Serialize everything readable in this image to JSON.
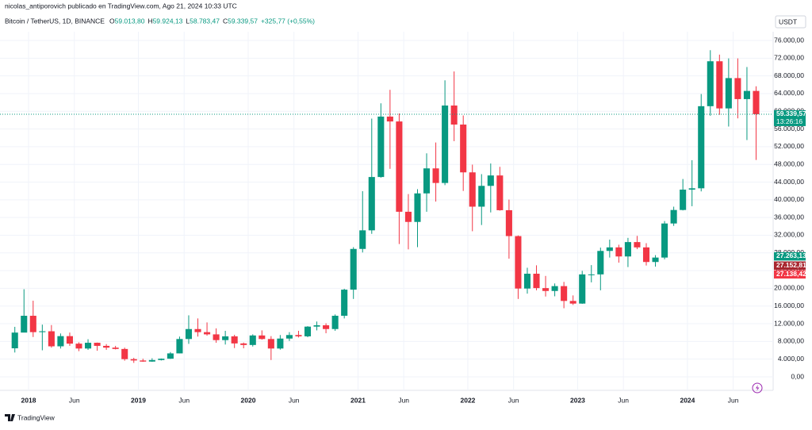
{
  "header": {
    "title": "nicolas_antiporovich publicado en TradingView.com, Ago 21, 2024 10:33 UTC"
  },
  "legend": {
    "symbol": "Bitcoin / TetherUS, 1D, BINANCE",
    "items": [
      {
        "key": "O",
        "text": "59.013,80"
      },
      {
        "key": "H",
        "text": "59.924,13"
      },
      {
        "key": "L",
        "text": "58.783,47"
      },
      {
        "key": "C",
        "text": "59.339,57"
      }
    ],
    "change": "+325,77 (+0,55%)"
  },
  "currency": "USDT",
  "brand": "TradingView",
  "chart_data": {
    "type": "candlestick",
    "up_color": "#089981",
    "down_color": "#f23645",
    "x": [
      "2017-11",
      "2017-12",
      "2018-01",
      "2018-02",
      "2018-03",
      "2018-04",
      "2018-05",
      "2018-06",
      "2018-07",
      "2018-08",
      "2018-09",
      "2018-10",
      "2018-11",
      "2018-12",
      "2019-01",
      "2019-02",
      "2019-03",
      "2019-04",
      "2019-05",
      "2019-06",
      "2019-07",
      "2019-08",
      "2019-09",
      "2019-10",
      "2019-11",
      "2019-12",
      "2020-01",
      "2020-02",
      "2020-03",
      "2020-04",
      "2020-05",
      "2020-06",
      "2020-07",
      "2020-08",
      "2020-09",
      "2020-10",
      "2020-11",
      "2020-12",
      "2021-01",
      "2021-02",
      "2021-03",
      "2021-04",
      "2021-05",
      "2021-06",
      "2021-07",
      "2021-08",
      "2021-09",
      "2021-10",
      "2021-11",
      "2021-12",
      "2022-01",
      "2022-02",
      "2022-03",
      "2022-04",
      "2022-05",
      "2022-06",
      "2022-07",
      "2022-08",
      "2022-09",
      "2022-10",
      "2022-11",
      "2022-12",
      "2023-01",
      "2023-02",
      "2023-03",
      "2023-04",
      "2023-05",
      "2023-06",
      "2023-07",
      "2023-08",
      "2023-09",
      "2023-10",
      "2023-11",
      "2023-12",
      "2024-01",
      "2024-02",
      "2024-03",
      "2024-04",
      "2024-05",
      "2024-06",
      "2024-07",
      "2024-08"
    ],
    "open": [
      6450,
      10000,
      13800,
      10100,
      10300,
      6900,
      9200,
      7500,
      6400,
      7700,
      7000,
      6600,
      6300,
      4000,
      3700,
      3450,
      3800,
      4100,
      5300,
      8550,
      10800,
      10100,
      9600,
      8300,
      9150,
      7550,
      7200,
      9350,
      8550,
      6400,
      8650,
      9450,
      9150,
      11350,
      11650,
      10800,
      13800,
      19700,
      28900,
      33100,
      45150,
      58800,
      57700,
      37300,
      35000,
      41450,
      47100,
      43800,
      61300,
      57000,
      46200,
      38450,
      43150,
      45500,
      37650,
      31800,
      19950,
      23300,
      20050,
      19400,
      20500,
      17150,
      16550,
      23150,
      23150,
      28450,
      29250,
      27200,
      30450,
      29250,
      25950,
      26950,
      34650,
      37700,
      42300,
      42600,
      61150,
      71300,
      60650,
      67500,
      62750,
      64600
    ],
    "high": [
      11300,
      19800,
      17200,
      11800,
      11700,
      9800,
      10000,
      7800,
      8500,
      7750,
      7400,
      7000,
      6600,
      4300,
      4100,
      4200,
      4150,
      5600,
      9100,
      13900,
      13200,
      12300,
      10950,
      10400,
      9500,
      7750,
      9600,
      10500,
      9200,
      9450,
      10100,
      10400,
      11450,
      12500,
      12100,
      14100,
      19900,
      29300,
      41950,
      58350,
      61800,
      64850,
      59500,
      41300,
      42400,
      50500,
      52950,
      67000,
      69000,
      59050,
      47950,
      45800,
      48200,
      47450,
      40050,
      31950,
      24650,
      25200,
      22800,
      21100,
      21450,
      18400,
      23950,
      25250,
      29200,
      31000,
      29850,
      31400,
      31850,
      30200,
      27500,
      35200,
      38450,
      44700,
      48950,
      63900,
      73800,
      72800,
      71950,
      71950,
      70000,
      65650
    ],
    "low": [
      5500,
      10400,
      9000,
      6000,
      6600,
      6400,
      7000,
      5800,
      6100,
      5900,
      6100,
      6200,
      3650,
      3150,
      3400,
      3400,
      3700,
      4050,
      5300,
      7450,
      9100,
      9300,
      7700,
      7300,
      6500,
      6450,
      6850,
      8400,
      3800,
      6150,
      8100,
      8900,
      8950,
      10500,
      9850,
      10400,
      13200,
      17600,
      28100,
      32300,
      45000,
      47000,
      30000,
      28800,
      29300,
      37300,
      39600,
      43300,
      53250,
      42000,
      32900,
      34300,
      37150,
      37550,
      26700,
      17600,
      18800,
      19550,
      18150,
      18200,
      15500,
      16250,
      16500,
      21350,
      19550,
      26950,
      25800,
      24800,
      28850,
      25150,
      24900,
      26550,
      34100,
      37600,
      38550,
      41900,
      59000,
      59200,
      56550,
      58400,
      53500,
      49000
    ],
    "close": [
      10000,
      13800,
      10100,
      10300,
      6900,
      9200,
      7500,
      6400,
      7700,
      7000,
      6600,
      6300,
      4000,
      3700,
      3450,
      3800,
      4100,
      5300,
      8550,
      10800,
      10100,
      9600,
      8300,
      9150,
      7550,
      7200,
      9350,
      8550,
      6400,
      8650,
      9450,
      9150,
      11350,
      11650,
      10800,
      13800,
      19700,
      28900,
      33100,
      45150,
      58800,
      57700,
      37300,
      35000,
      41450,
      47100,
      43800,
      61300,
      57000,
      46200,
      38450,
      43150,
      45500,
      37650,
      31800,
      19950,
      23300,
      20050,
      19400,
      20500,
      17150,
      16550,
      23150,
      23150,
      28450,
      29250,
      27200,
      30450,
      29250,
      25950,
      26950,
      34650,
      37700,
      42300,
      42600,
      61150,
      71300,
      60650,
      67500,
      62750,
      64600,
      59340
    ],
    "xlim": [
      "2017-10",
      "2024-10"
    ],
    "xticks": [
      {
        "value": "2018-01",
        "label": "2018"
      },
      {
        "value": "2018-06",
        "label": "Jun"
      },
      {
        "value": "2019-01",
        "label": "2019"
      },
      {
        "value": "2019-06",
        "label": "Jun"
      },
      {
        "value": "2020-01",
        "label": "2020"
      },
      {
        "value": "2020-06",
        "label": "Jun"
      },
      {
        "value": "2021-01",
        "label": "2021"
      },
      {
        "value": "2021-06",
        "label": "Jun"
      },
      {
        "value": "2022-01",
        "label": "2022"
      },
      {
        "value": "2022-06",
        "label": "Jun"
      },
      {
        "value": "2023-01",
        "label": "2023"
      },
      {
        "value": "2023-06",
        "label": "Jun"
      },
      {
        "value": "2024-01",
        "label": "2024"
      },
      {
        "value": "2024-06",
        "label": "Jun"
      }
    ],
    "ylim": [
      0,
      76000
    ],
    "yticks": [
      {
        "value": 0,
        "label": "0,00"
      },
      {
        "value": 4000,
        "label": "4.000,00"
      },
      {
        "value": 8000,
        "label": "8.000,00"
      },
      {
        "value": 12000,
        "label": "12.000,00"
      },
      {
        "value": 16000,
        "label": "16.000,00"
      },
      {
        "value": 20000,
        "label": "20.000,00"
      },
      {
        "value": 24000,
        "label": "24.000,00"
      },
      {
        "value": 28000,
        "label": "28.000,00"
      },
      {
        "value": 32000,
        "label": "32.000,00"
      },
      {
        "value": 36000,
        "label": "36.000,00"
      },
      {
        "value": 40000,
        "label": "40.000,00"
      },
      {
        "value": 44000,
        "label": "44.000,00"
      },
      {
        "value": 48000,
        "label": "48.000,00"
      },
      {
        "value": 52000,
        "label": "52.000,00"
      },
      {
        "value": 56000,
        "label": "56.000,00"
      },
      {
        "value": 60000,
        "label": "60.000,00"
      },
      {
        "value": 64000,
        "label": "64.000,00"
      },
      {
        "value": 68000,
        "label": "68.000,00"
      },
      {
        "value": 72000,
        "label": "72.000,00"
      },
      {
        "value": 76000,
        "label": "76.000,00"
      }
    ],
    "grid": true,
    "last_price": {
      "value": 59339.57,
      "label": "59.339,57",
      "countdown": "13:26:16",
      "color": "#089981"
    },
    "price_tags": [
      {
        "value": 27263.13,
        "label": "27.263,13",
        "color": "#089981"
      },
      {
        "value": 27152.81,
        "label": "27.152,81",
        "color": "#a8262f"
      },
      {
        "value": 27138.42,
        "label": "27.138,42",
        "color": "#f23645"
      }
    ]
  }
}
